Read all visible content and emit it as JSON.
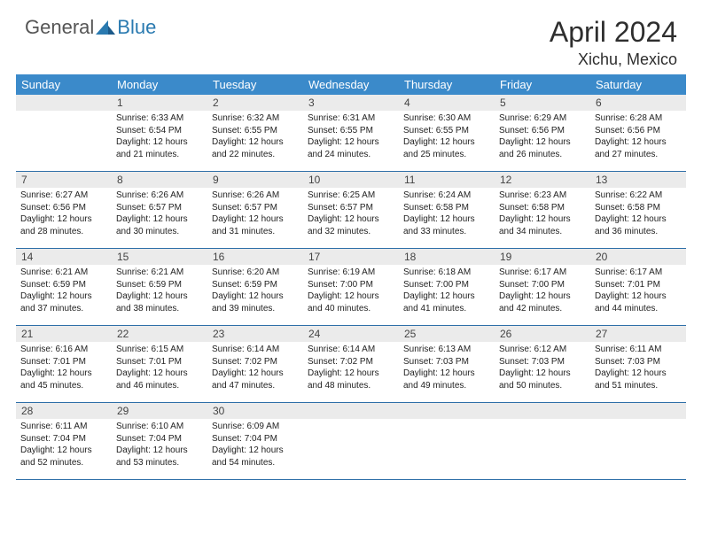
{
  "brand": {
    "general": "General",
    "blue": "Blue"
  },
  "title": "April 2024",
  "location": "Xichu, Mexico",
  "colors": {
    "header_bg": "#3b8aca",
    "header_text": "#ffffff",
    "daynum_bg": "#ebebeb",
    "week_border": "#2e6fa8",
    "logo_blue": "#2a7ab0"
  },
  "weekdays": [
    "Sunday",
    "Monday",
    "Tuesday",
    "Wednesday",
    "Thursday",
    "Friday",
    "Saturday"
  ],
  "weeks": [
    [
      {
        "n": "",
        "sr": "",
        "ss": "",
        "d1": "",
        "d2": ""
      },
      {
        "n": "1",
        "sr": "Sunrise: 6:33 AM",
        "ss": "Sunset: 6:54 PM",
        "d1": "Daylight: 12 hours",
        "d2": "and 21 minutes."
      },
      {
        "n": "2",
        "sr": "Sunrise: 6:32 AM",
        "ss": "Sunset: 6:55 PM",
        "d1": "Daylight: 12 hours",
        "d2": "and 22 minutes."
      },
      {
        "n": "3",
        "sr": "Sunrise: 6:31 AM",
        "ss": "Sunset: 6:55 PM",
        "d1": "Daylight: 12 hours",
        "d2": "and 24 minutes."
      },
      {
        "n": "4",
        "sr": "Sunrise: 6:30 AM",
        "ss": "Sunset: 6:55 PM",
        "d1": "Daylight: 12 hours",
        "d2": "and 25 minutes."
      },
      {
        "n": "5",
        "sr": "Sunrise: 6:29 AM",
        "ss": "Sunset: 6:56 PM",
        "d1": "Daylight: 12 hours",
        "d2": "and 26 minutes."
      },
      {
        "n": "6",
        "sr": "Sunrise: 6:28 AM",
        "ss": "Sunset: 6:56 PM",
        "d1": "Daylight: 12 hours",
        "d2": "and 27 minutes."
      }
    ],
    [
      {
        "n": "7",
        "sr": "Sunrise: 6:27 AM",
        "ss": "Sunset: 6:56 PM",
        "d1": "Daylight: 12 hours",
        "d2": "and 28 minutes."
      },
      {
        "n": "8",
        "sr": "Sunrise: 6:26 AM",
        "ss": "Sunset: 6:57 PM",
        "d1": "Daylight: 12 hours",
        "d2": "and 30 minutes."
      },
      {
        "n": "9",
        "sr": "Sunrise: 6:26 AM",
        "ss": "Sunset: 6:57 PM",
        "d1": "Daylight: 12 hours",
        "d2": "and 31 minutes."
      },
      {
        "n": "10",
        "sr": "Sunrise: 6:25 AM",
        "ss": "Sunset: 6:57 PM",
        "d1": "Daylight: 12 hours",
        "d2": "and 32 minutes."
      },
      {
        "n": "11",
        "sr": "Sunrise: 6:24 AM",
        "ss": "Sunset: 6:58 PM",
        "d1": "Daylight: 12 hours",
        "d2": "and 33 minutes."
      },
      {
        "n": "12",
        "sr": "Sunrise: 6:23 AM",
        "ss": "Sunset: 6:58 PM",
        "d1": "Daylight: 12 hours",
        "d2": "and 34 minutes."
      },
      {
        "n": "13",
        "sr": "Sunrise: 6:22 AM",
        "ss": "Sunset: 6:58 PM",
        "d1": "Daylight: 12 hours",
        "d2": "and 36 minutes."
      }
    ],
    [
      {
        "n": "14",
        "sr": "Sunrise: 6:21 AM",
        "ss": "Sunset: 6:59 PM",
        "d1": "Daylight: 12 hours",
        "d2": "and 37 minutes."
      },
      {
        "n": "15",
        "sr": "Sunrise: 6:21 AM",
        "ss": "Sunset: 6:59 PM",
        "d1": "Daylight: 12 hours",
        "d2": "and 38 minutes."
      },
      {
        "n": "16",
        "sr": "Sunrise: 6:20 AM",
        "ss": "Sunset: 6:59 PM",
        "d1": "Daylight: 12 hours",
        "d2": "and 39 minutes."
      },
      {
        "n": "17",
        "sr": "Sunrise: 6:19 AM",
        "ss": "Sunset: 7:00 PM",
        "d1": "Daylight: 12 hours",
        "d2": "and 40 minutes."
      },
      {
        "n": "18",
        "sr": "Sunrise: 6:18 AM",
        "ss": "Sunset: 7:00 PM",
        "d1": "Daylight: 12 hours",
        "d2": "and 41 minutes."
      },
      {
        "n": "19",
        "sr": "Sunrise: 6:17 AM",
        "ss": "Sunset: 7:00 PM",
        "d1": "Daylight: 12 hours",
        "d2": "and 42 minutes."
      },
      {
        "n": "20",
        "sr": "Sunrise: 6:17 AM",
        "ss": "Sunset: 7:01 PM",
        "d1": "Daylight: 12 hours",
        "d2": "and 44 minutes."
      }
    ],
    [
      {
        "n": "21",
        "sr": "Sunrise: 6:16 AM",
        "ss": "Sunset: 7:01 PM",
        "d1": "Daylight: 12 hours",
        "d2": "and 45 minutes."
      },
      {
        "n": "22",
        "sr": "Sunrise: 6:15 AM",
        "ss": "Sunset: 7:01 PM",
        "d1": "Daylight: 12 hours",
        "d2": "and 46 minutes."
      },
      {
        "n": "23",
        "sr": "Sunrise: 6:14 AM",
        "ss": "Sunset: 7:02 PM",
        "d1": "Daylight: 12 hours",
        "d2": "and 47 minutes."
      },
      {
        "n": "24",
        "sr": "Sunrise: 6:14 AM",
        "ss": "Sunset: 7:02 PM",
        "d1": "Daylight: 12 hours",
        "d2": "and 48 minutes."
      },
      {
        "n": "25",
        "sr": "Sunrise: 6:13 AM",
        "ss": "Sunset: 7:03 PM",
        "d1": "Daylight: 12 hours",
        "d2": "and 49 minutes."
      },
      {
        "n": "26",
        "sr": "Sunrise: 6:12 AM",
        "ss": "Sunset: 7:03 PM",
        "d1": "Daylight: 12 hours",
        "d2": "and 50 minutes."
      },
      {
        "n": "27",
        "sr": "Sunrise: 6:11 AM",
        "ss": "Sunset: 7:03 PM",
        "d1": "Daylight: 12 hours",
        "d2": "and 51 minutes."
      }
    ],
    [
      {
        "n": "28",
        "sr": "Sunrise: 6:11 AM",
        "ss": "Sunset: 7:04 PM",
        "d1": "Daylight: 12 hours",
        "d2": "and 52 minutes."
      },
      {
        "n": "29",
        "sr": "Sunrise: 6:10 AM",
        "ss": "Sunset: 7:04 PM",
        "d1": "Daylight: 12 hours",
        "d2": "and 53 minutes."
      },
      {
        "n": "30",
        "sr": "Sunrise: 6:09 AM",
        "ss": "Sunset: 7:04 PM",
        "d1": "Daylight: 12 hours",
        "d2": "and 54 minutes."
      },
      {
        "n": "",
        "sr": "",
        "ss": "",
        "d1": "",
        "d2": ""
      },
      {
        "n": "",
        "sr": "",
        "ss": "",
        "d1": "",
        "d2": ""
      },
      {
        "n": "",
        "sr": "",
        "ss": "",
        "d1": "",
        "d2": ""
      },
      {
        "n": "",
        "sr": "",
        "ss": "",
        "d1": "",
        "d2": ""
      }
    ]
  ]
}
